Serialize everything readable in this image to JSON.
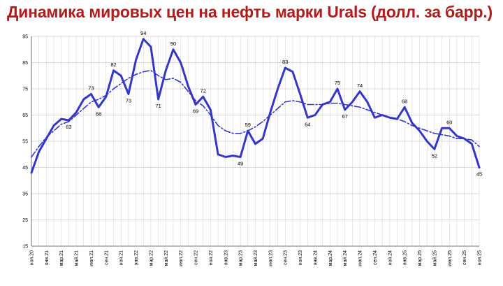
{
  "chart_data": {
    "type": "line",
    "title": "Динамика мировых цен на нефть марки Urals (долл. за барр.)",
    "xlabel": "",
    "ylabel": "",
    "ylim": [
      15,
      95
    ],
    "y_ticks": [
      "15",
      "25",
      "35",
      "45",
      "55",
      "65",
      "75",
      "85",
      "95"
    ],
    "grid": true,
    "legend": "none",
    "x_tick_labels": [
      "ноя.20",
      "янв.21",
      "мар.21",
      "май.21",
      "июл.21",
      "сен.21",
      "ноя.21",
      "янв.22",
      "мар.22",
      "май.22",
      "июл.22",
      "сен.22",
      "ноя.22",
      "янв.23",
      "мар.23",
      "май.23",
      "июл.23",
      "сен.23",
      "ноя.23",
      "янв.24",
      "мар.24",
      "май.24",
      "июл.24",
      "сен.24",
      "ноя.24",
      "янв.25",
      "мар.25",
      "май.25",
      "июл.25",
      "сен.25",
      "ноя.25"
    ],
    "colors": {
      "series": "#3535c8",
      "title": "#b01c1c",
      "grid": "#cccccc"
    },
    "series": [
      {
        "style": "solid",
        "values": [
          43,
          51,
          56,
          61,
          63.5,
          63,
          66,
          71,
          73,
          68,
          72,
          82,
          80,
          73,
          86,
          94,
          91,
          71,
          82,
          90,
          85,
          76,
          69,
          72,
          67,
          50,
          49,
          49.5,
          49,
          59,
          54,
          56,
          66,
          75,
          83,
          81.5,
          73,
          64,
          65,
          69,
          70,
          75,
          67,
          70,
          74,
          70,
          64,
          65,
          64,
          63.5,
          68,
          62,
          59,
          55,
          52,
          60,
          60,
          57,
          56,
          54,
          45
        ]
      },
      {
        "style": "dashdot",
        "values": [
          49,
          53,
          56.5,
          59,
          61.5,
          62.5,
          65,
          67.5,
          70,
          71,
          72.5,
          75,
          77,
          79,
          80.5,
          81.5,
          82,
          80,
          78.5,
          79,
          77.5,
          74,
          70.5,
          68.5,
          65,
          61,
          59,
          58,
          58,
          59,
          60.5,
          62.5,
          65,
          67.5,
          70,
          70.5,
          70,
          69,
          69,
          69,
          69.5,
          69.5,
          69,
          68.5,
          68,
          67,
          66,
          65,
          64,
          63.5,
          62.5,
          61,
          60,
          59,
          58,
          57.5,
          57,
          56,
          56,
          55.5,
          53
        ]
      }
    ],
    "data_labels": [
      {
        "index": 5,
        "text": "63",
        "pos": "below"
      },
      {
        "index": 8,
        "text": "73",
        "pos": "above"
      },
      {
        "index": 9,
        "text": "68",
        "pos": "below"
      },
      {
        "index": 11,
        "text": "82",
        "pos": "above"
      },
      {
        "index": 13,
        "text": "73",
        "pos": "below"
      },
      {
        "index": 15,
        "text": "94",
        "pos": "above"
      },
      {
        "index": 17,
        "text": "71",
        "pos": "below"
      },
      {
        "index": 19,
        "text": "90",
        "pos": "above"
      },
      {
        "index": 22,
        "text": "69",
        "pos": "below"
      },
      {
        "index": 23,
        "text": "72",
        "pos": "above"
      },
      {
        "index": 28,
        "text": "49",
        "pos": "below"
      },
      {
        "index": 29,
        "text": "59",
        "pos": "above"
      },
      {
        "index": 34,
        "text": "83",
        "pos": "above"
      },
      {
        "index": 37,
        "text": "64",
        "pos": "below"
      },
      {
        "index": 41,
        "text": "75",
        "pos": "above"
      },
      {
        "index": 42,
        "text": "67",
        "pos": "below"
      },
      {
        "index": 44,
        "text": "74",
        "pos": "above"
      },
      {
        "index": 50,
        "text": "68",
        "pos": "above"
      },
      {
        "index": 54,
        "text": "52",
        "pos": "below"
      },
      {
        "index": 56,
        "text": "60",
        "pos": "above"
      },
      {
        "index": 60,
        "text": "45",
        "pos": "below"
      }
    ]
  }
}
